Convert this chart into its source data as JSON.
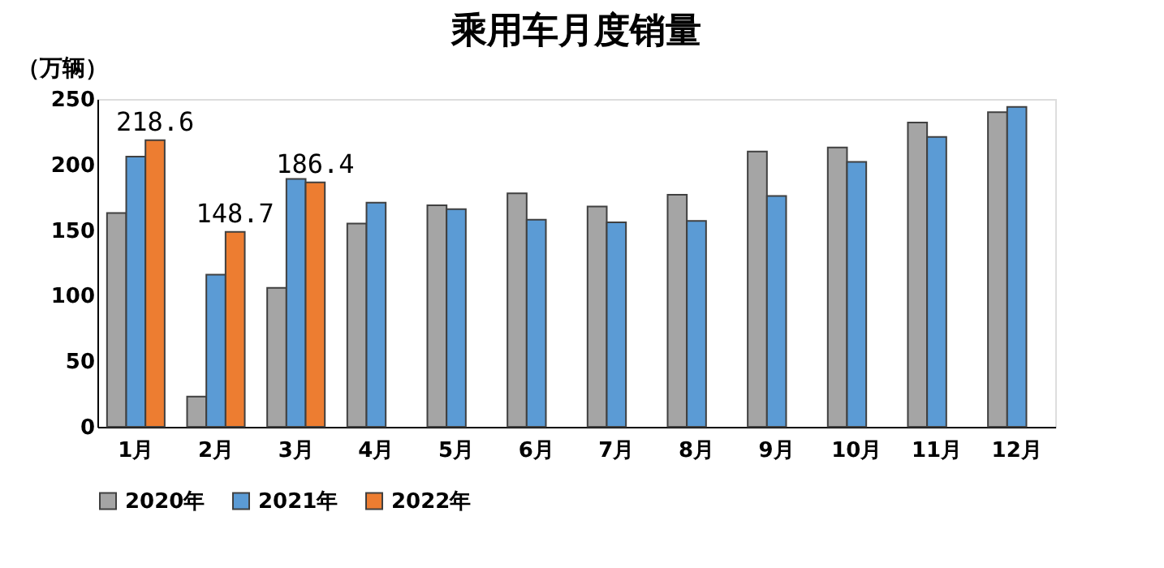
{
  "chart_data": {
    "type": "bar",
    "title": "乘用车月度销量",
    "ylabel": "（万辆）",
    "categories": [
      "1月",
      "2月",
      "3月",
      "4月",
      "5月",
      "6月",
      "7月",
      "8月",
      "9月",
      "10月",
      "11月",
      "12月"
    ],
    "series": [
      {
        "name": "2020年",
        "color": "#a5a5a5",
        "values": [
          163,
          23,
          106,
          155,
          169,
          178,
          168,
          177,
          210,
          213,
          232,
          240
        ]
      },
      {
        "name": "2021年",
        "color": "#5b9bd5",
        "values": [
          206,
          116,
          189,
          171,
          166,
          158,
          156,
          157,
          176,
          202,
          221,
          244
        ]
      },
      {
        "name": "2022年",
        "color": "#ed7d31",
        "values": [
          218.6,
          148.7,
          186.4,
          null,
          null,
          null,
          null,
          null,
          null,
          null,
          null,
          null
        ],
        "value_labels": [
          "218.6",
          "148.7",
          "186.4",
          null,
          null,
          null,
          null,
          null,
          null,
          null,
          null,
          null
        ]
      }
    ],
    "ylim": [
      0,
      250
    ],
    "yticks": [
      0,
      50,
      100,
      150,
      200,
      250
    ],
    "grid": false,
    "legend": "bottom"
  }
}
